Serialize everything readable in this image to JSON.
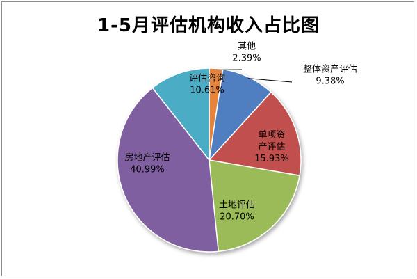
{
  "chart_data": {
    "type": "pie",
    "title": "1-5月评估机构收入占比图",
    "start_angle_deg": 0,
    "direction": "clockwise",
    "slices": [
      {
        "label_lines": [
          "其他"
        ],
        "pct_label": "2.39%",
        "value": 2.39,
        "color": "#e8833a"
      },
      {
        "label_lines": [
          "整体资产评估"
        ],
        "pct_label": "9.38%",
        "value": 9.38,
        "color": "#4f7fc0"
      },
      {
        "label_lines": [
          "单项资",
          "产评估"
        ],
        "pct_label": "15.93%",
        "value": 15.93,
        "color": "#c0504d"
      },
      {
        "label_lines": [
          "土地评估"
        ],
        "pct_label": "20.70%",
        "value": 20.7,
        "color": "#9bbb59"
      },
      {
        "label_lines": [
          "房地产评估"
        ],
        "pct_label": "40.99%",
        "value": 40.99,
        "color": "#7f5f9f"
      },
      {
        "label_lines": [
          "评估咨询"
        ],
        "pct_label": "10.61%",
        "value": 10.61,
        "color": "#4bacc6"
      }
    ]
  }
}
